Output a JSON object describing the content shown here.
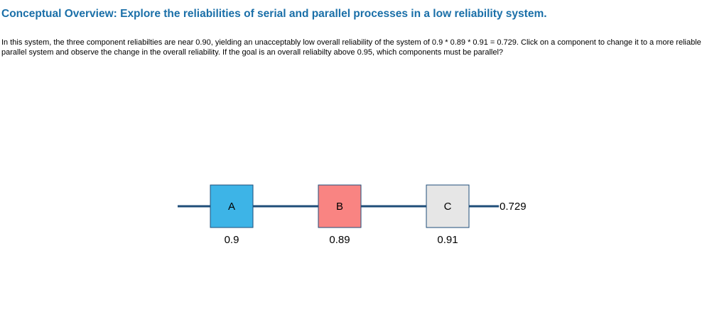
{
  "header": {
    "title": "Conceptual Overview: Explore the reliabilities of serial and parallel processes in a low reliability system.",
    "description": "In this system, the three component reliabilties are near 0.90, yielding an unacceptably low overall reliability of the system of 0.9 * 0.89 * 0.91 = 0.729. Click on a component to change it to a more reliable parallel system and observe the change in the overall reliability. If the goal is an overall reliabilty above 0.95, which components must be parallel?"
  },
  "diagram": {
    "components": [
      {
        "label": "A",
        "reliability": "0.9",
        "color": "#3db4e7"
      },
      {
        "label": "B",
        "reliability": "0.89",
        "color": "#f98482"
      },
      {
        "label": "C",
        "reliability": "0.91",
        "color": "#e6e6e6"
      }
    ],
    "overall": "0.729",
    "line_color": "#1f4e79"
  }
}
